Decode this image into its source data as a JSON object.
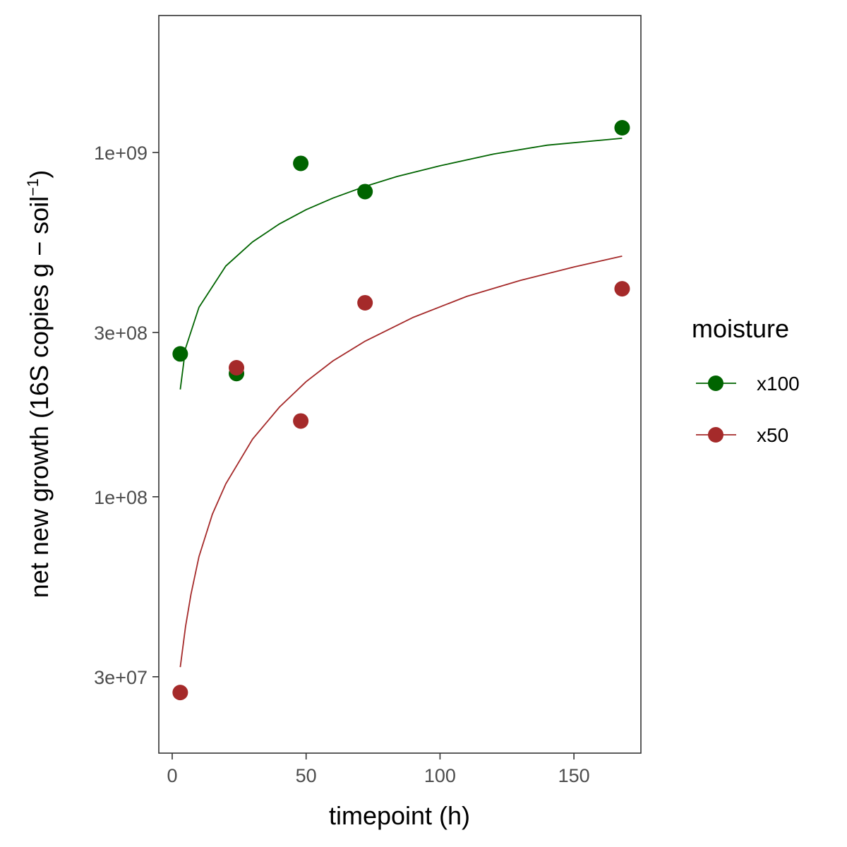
{
  "chart_data": {
    "type": "scatter",
    "xlabel": "timepoint (h)",
    "ylabel": "net new growth (16S copies  g − soil",
    "ylabel_superscript": "−1",
    "ylabel_close": ")",
    "x_scale": "linear",
    "y_scale": "log10",
    "xlim": [
      -5,
      175
    ],
    "ylim": [
      18000000,
      2500000000
    ],
    "x_ticks": [
      0,
      50,
      100,
      150
    ],
    "x_tick_labels": [
      "0",
      "50",
      "100",
      "150"
    ],
    "y_ticks": [
      30000000,
      100000000,
      300000000,
      1000000000
    ],
    "y_tick_labels": [
      "3e+07",
      "1e+08",
      "3e+08",
      "1e+09"
    ],
    "grid": false,
    "legend": {
      "title": "moisture",
      "position": "right"
    },
    "series": [
      {
        "name": "x100",
        "color": "#006400",
        "points": [
          {
            "x": 3,
            "y": 260000000
          },
          {
            "x": 24,
            "y": 228000000
          },
          {
            "x": 48,
            "y": 930000000
          },
          {
            "x": 72,
            "y": 770000000
          },
          {
            "x": 168,
            "y": 1180000000
          }
        ],
        "fit": [
          {
            "x": 3,
            "y": 205000000
          },
          {
            "x": 5,
            "y": 270000000
          },
          {
            "x": 10,
            "y": 355000000
          },
          {
            "x": 20,
            "y": 468000000
          },
          {
            "x": 30,
            "y": 550000000
          },
          {
            "x": 40,
            "y": 620000000
          },
          {
            "x": 50,
            "y": 682000000
          },
          {
            "x": 60,
            "y": 737000000
          },
          {
            "x": 72,
            "y": 797000000
          },
          {
            "x": 84,
            "y": 852000000
          },
          {
            "x": 100,
            "y": 915000000
          },
          {
            "x": 120,
            "y": 990000000
          },
          {
            "x": 140,
            "y": 1050000000
          },
          {
            "x": 168,
            "y": 1100000000
          }
        ]
      },
      {
        "name": "x50",
        "color": "#A52A2A",
        "points": [
          {
            "x": 3,
            "y": 27000000
          },
          {
            "x": 24,
            "y": 237000000
          },
          {
            "x": 48,
            "y": 166000000
          },
          {
            "x": 72,
            "y": 366000000
          },
          {
            "x": 168,
            "y": 402000000
          }
        ],
        "fit": [
          {
            "x": 3,
            "y": 32000000
          },
          {
            "x": 5,
            "y": 42000000
          },
          {
            "x": 7,
            "y": 52000000
          },
          {
            "x": 10,
            "y": 67000000
          },
          {
            "x": 15,
            "y": 89000000
          },
          {
            "x": 20,
            "y": 109000000
          },
          {
            "x": 30,
            "y": 147000000
          },
          {
            "x": 40,
            "y": 182000000
          },
          {
            "x": 50,
            "y": 216000000
          },
          {
            "x": 60,
            "y": 248000000
          },
          {
            "x": 72,
            "y": 283000000
          },
          {
            "x": 90,
            "y": 332000000
          },
          {
            "x": 110,
            "y": 382000000
          },
          {
            "x": 130,
            "y": 425000000
          },
          {
            "x": 150,
            "y": 465000000
          },
          {
            "x": 168,
            "y": 500000000
          }
        ]
      }
    ]
  }
}
